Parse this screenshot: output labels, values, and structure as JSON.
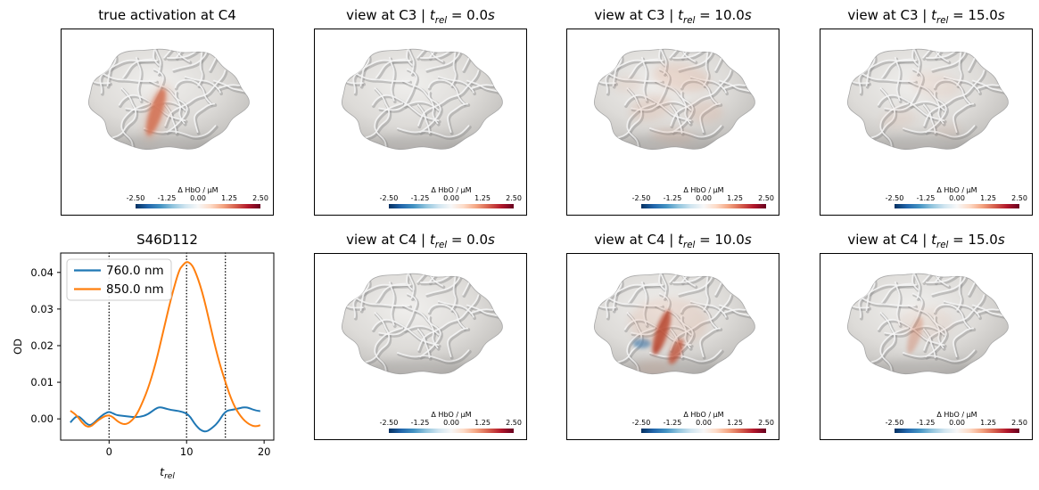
{
  "figure": {
    "background": "#ffffff",
    "brain_base_color": "#d3d1ce"
  },
  "colorbar": {
    "label": "Δ HbO / µM",
    "ticks": [
      "-2.50",
      "-1.25",
      "0.00",
      "1.25",
      "2.50"
    ],
    "range": [
      -2.5,
      2.5
    ],
    "cmap": [
      "#053061",
      "#2166ac",
      "#4393c3",
      "#92c5de",
      "#d1e5f0",
      "#f7f7f7",
      "#fddbc7",
      "#f4a582",
      "#d6604d",
      "#b2182b",
      "#67001f"
    ]
  },
  "panels": [
    {
      "dom": "panel-true-activation",
      "type": "brain",
      "row": 0,
      "col": 0,
      "title": "true activation at C4",
      "math": false,
      "activation": [
        {
          "fx": 0.44,
          "fy": 0.55,
          "frx": 0.035,
          "fry": 0.18,
          "rot": 18,
          "color": "#cf6a4d",
          "opacity": 0.95,
          "soft": false
        },
        {
          "fx": 0.445,
          "fy": 0.55,
          "frx": 0.06,
          "fry": 0.22,
          "rot": 18,
          "color": "#e09a7e",
          "opacity": 0.3,
          "soft": true
        }
      ]
    },
    {
      "dom": "panel-view-c3-t0",
      "type": "brain",
      "row": 0,
      "col": 1,
      "title": "view at C3 | t_rel = 0.0s",
      "math": true,
      "activation": []
    },
    {
      "dom": "panel-view-c3-t10",
      "type": "brain",
      "row": 0,
      "col": 2,
      "title": "view at C3 | t_rel = 10.0s",
      "math": true,
      "activation": [
        {
          "fx": 0.55,
          "fy": 0.3,
          "frx": 0.16,
          "fry": 0.1,
          "rot": 10,
          "color": "#d8906f",
          "opacity": 0.22,
          "soft": true
        },
        {
          "fx": 0.38,
          "fy": 0.52,
          "frx": 0.12,
          "fry": 0.09,
          "rot": -15,
          "color": "#d8906f",
          "opacity": 0.18,
          "soft": true
        },
        {
          "fx": 0.68,
          "fy": 0.55,
          "frx": 0.1,
          "fry": 0.08,
          "rot": 0,
          "color": "#d8906f",
          "opacity": 0.18,
          "soft": true
        },
        {
          "fx": 0.5,
          "fy": 0.72,
          "frx": 0.12,
          "fry": 0.06,
          "rot": 5,
          "color": "#d8906f",
          "opacity": 0.15,
          "soft": true
        },
        {
          "fx": 0.25,
          "fy": 0.35,
          "frx": 0.08,
          "fry": 0.06,
          "rot": 0,
          "color": "#d8906f",
          "opacity": 0.12,
          "soft": true
        }
      ]
    },
    {
      "dom": "panel-view-c3-t15",
      "type": "brain",
      "row": 0,
      "col": 3,
      "title": "view at C3 | t_rel = 15.0s",
      "math": true,
      "activation": [
        {
          "fx": 0.55,
          "fy": 0.35,
          "frx": 0.14,
          "fry": 0.09,
          "rot": 10,
          "color": "#d8906f",
          "opacity": 0.12,
          "soft": true
        },
        {
          "fx": 0.35,
          "fy": 0.6,
          "frx": 0.1,
          "fry": 0.07,
          "rot": -10,
          "color": "#d8906f",
          "opacity": 0.1,
          "soft": true
        },
        {
          "fx": 0.62,
          "fy": 0.68,
          "frx": 0.08,
          "fry": 0.05,
          "rot": 0,
          "color": "#d8906f",
          "opacity": 0.1,
          "soft": true
        }
      ]
    },
    {
      "dom": "panel-timeseries",
      "type": "line",
      "row": 1,
      "col": 0,
      "title": "S46D112",
      "math": false
    },
    {
      "dom": "panel-view-c4-t0",
      "type": "brain",
      "row": 1,
      "col": 1,
      "title": "view at C4 | t_rel = 0.0s",
      "math": true,
      "activation": []
    },
    {
      "dom": "panel-view-c4-t10",
      "type": "brain",
      "row": 1,
      "col": 2,
      "title": "view at C4 | t_rel = 10.0s",
      "math": true,
      "activation": [
        {
          "fx": 0.44,
          "fy": 0.52,
          "frx": 0.033,
          "fry": 0.17,
          "rot": 18,
          "color": "#b5402c",
          "opacity": 0.9,
          "soft": false
        },
        {
          "fx": 0.52,
          "fy": 0.66,
          "frx": 0.03,
          "fry": 0.1,
          "rot": 25,
          "color": "#c0523a",
          "opacity": 0.8,
          "soft": false
        },
        {
          "fx": 0.33,
          "fy": 0.6,
          "frx": 0.05,
          "fry": 0.035,
          "rot": 0,
          "color": "#5587b2",
          "opacity": 0.75,
          "soft": false
        },
        {
          "fx": 0.48,
          "fy": 0.45,
          "frx": 0.22,
          "fry": 0.18,
          "rot": 0,
          "color": "#d8906f",
          "opacity": 0.18,
          "soft": true
        },
        {
          "fx": 0.4,
          "fy": 0.78,
          "frx": 0.1,
          "fry": 0.06,
          "rot": 0,
          "color": "#d8906f",
          "opacity": 0.15,
          "soft": true
        }
      ]
    },
    {
      "dom": "panel-view-c4-t15",
      "type": "brain",
      "row": 1,
      "col": 3,
      "title": "view at C4 | t_rel = 15.0s",
      "math": true,
      "activation": [
        {
          "fx": 0.44,
          "fy": 0.54,
          "frx": 0.03,
          "fry": 0.14,
          "rot": 18,
          "color": "#cf7a5d",
          "opacity": 0.4,
          "soft": false
        },
        {
          "fx": 0.5,
          "fy": 0.45,
          "frx": 0.15,
          "fry": 0.12,
          "rot": 0,
          "color": "#d8906f",
          "opacity": 0.1,
          "soft": true
        }
      ]
    }
  ],
  "chart_data": {
    "type": "line",
    "title": "S46D112",
    "xlabel": "t_rel",
    "ylabel": "OD",
    "xlim": [
      -6.25,
      21.25
    ],
    "ylim": [
      -0.0058,
      0.0453
    ],
    "xticks": [
      0,
      10,
      20
    ],
    "yticks": [
      0.0,
      0.01,
      0.02,
      0.03,
      0.04
    ],
    "vlines": [
      0,
      10,
      15
    ],
    "grid": false,
    "legend_position": "upper-left",
    "series": [
      {
        "name": "760.0 nm",
        "color": "#1f77b4",
        "x": [
          -5,
          -4.5,
          -4,
          -3.5,
          -3,
          -2.5,
          -2,
          -1.5,
          -1,
          -0.5,
          0,
          0.5,
          1,
          2,
          3,
          4,
          5,
          6,
          6.5,
          7,
          8,
          9,
          10,
          10.5,
          11,
          11.5,
          12,
          12.5,
          13,
          14,
          15,
          16,
          17,
          17.5,
          18,
          19,
          20
        ],
        "y": [
          -0.001,
          0.0003,
          0.0008,
          0.0,
          -0.0012,
          -0.0018,
          -0.0012,
          -0.0002,
          0.0008,
          0.0015,
          0.002,
          0.0015,
          0.001,
          0.0008,
          0.0005,
          0.0005,
          0.0012,
          0.0028,
          0.0032,
          0.003,
          0.0024,
          0.0022,
          0.0015,
          0.0005,
          -0.0012,
          -0.0025,
          -0.0033,
          -0.0035,
          -0.003,
          -0.0012,
          0.0022,
          0.0025,
          0.003,
          0.0032,
          0.003,
          0.0022,
          0.002
        ]
      },
      {
        "name": "850.0 nm",
        "color": "#ff7f0e",
        "x": [
          -5,
          -4.5,
          -4,
          -3.5,
          -3,
          -2.5,
          -2,
          -1.5,
          -1,
          -0.5,
          0,
          0.5,
          1,
          1.5,
          2,
          2.5,
          3,
          3.5,
          4,
          5,
          6,
          7,
          8,
          9,
          9.5,
          10,
          10.5,
          11,
          12,
          13,
          14,
          15,
          16,
          17,
          18,
          19,
          20
        ],
        "y": [
          0.0022,
          0.0015,
          0.0005,
          -0.001,
          -0.002,
          -0.0022,
          -0.0015,
          -0.0005,
          0.0002,
          0.0008,
          0.001,
          0.0005,
          -0.0005,
          -0.0012,
          -0.0015,
          -0.0012,
          -0.0003,
          0.001,
          0.003,
          0.008,
          0.015,
          0.024,
          0.033,
          0.0405,
          0.042,
          0.043,
          0.0425,
          0.041,
          0.035,
          0.026,
          0.017,
          0.01,
          0.004,
          0.0005,
          -0.0015,
          -0.0022,
          -0.0012
        ]
      }
    ]
  }
}
